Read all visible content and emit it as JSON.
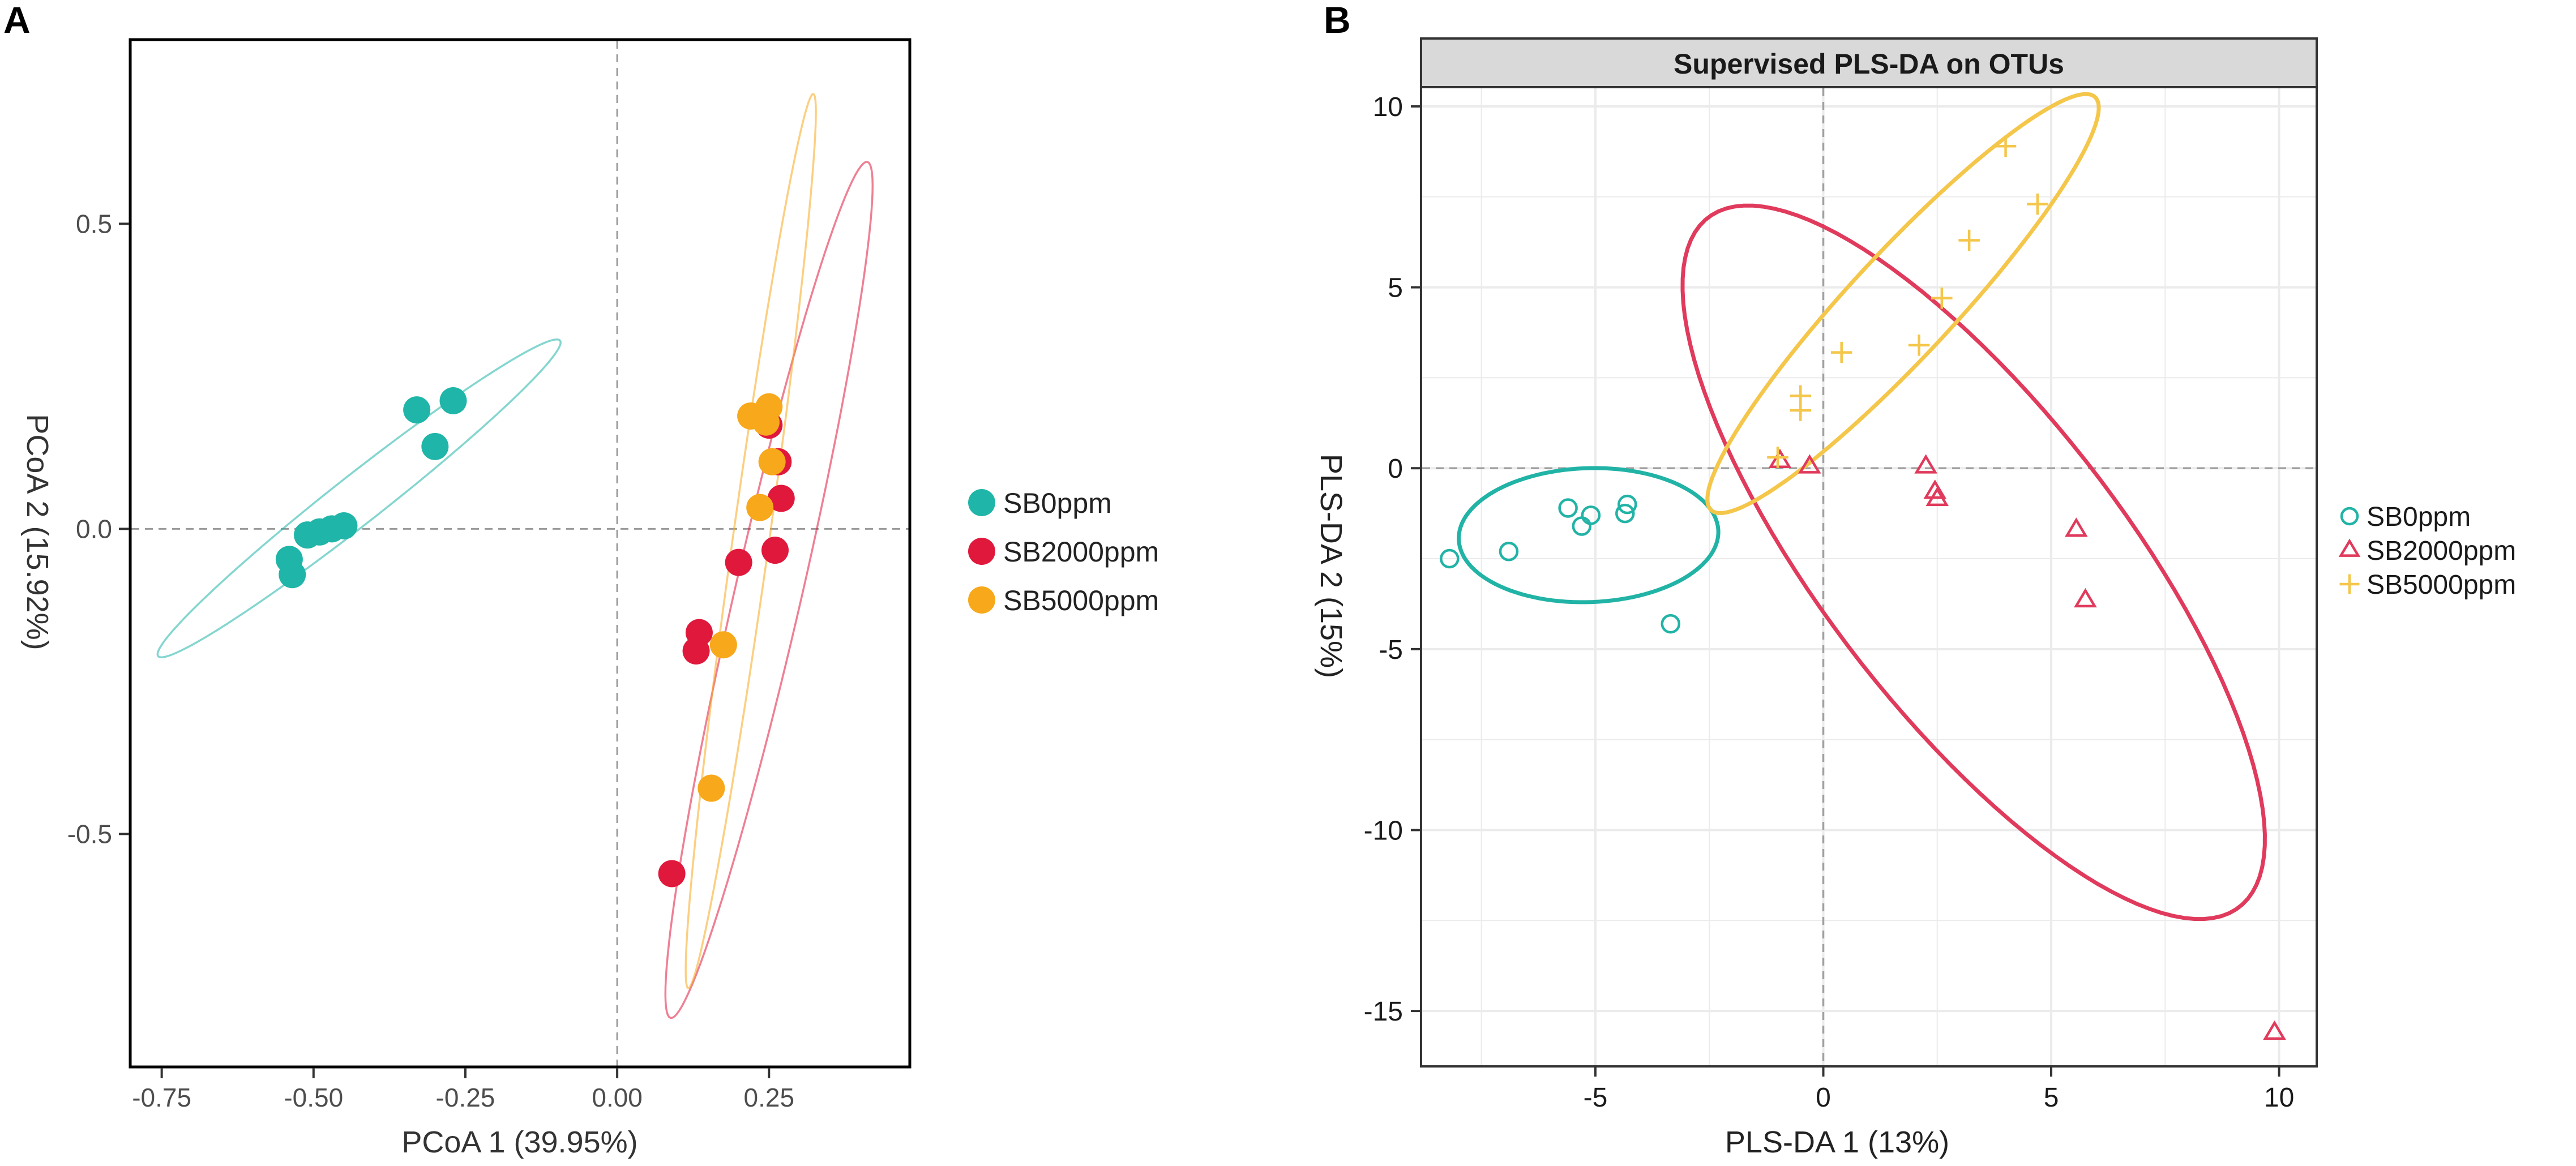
{
  "panels": {
    "a": {
      "label": "A"
    },
    "b": {
      "label": "B"
    }
  },
  "colors": {
    "SB0ppm": "#1fb5a8",
    "SB2000ppm": "#e0183c",
    "SB5000ppm": "#f7a81b",
    "b_SB0ppm": "#21b3a6",
    "b_SB2000ppm": "#e03a5c",
    "b_SB5000ppm": "#f4c64a",
    "grid": "#ebebeb",
    "strip": "#d9d9d9"
  },
  "chart_data": [
    {
      "type": "scatter",
      "panel": "A",
      "title": "",
      "xlabel": "PCoA 1 (39.95%)",
      "ylabel": "PCoA 2 (15.92%)",
      "xlim": [
        -0.8,
        0.48
      ],
      "ylim": [
        -0.88,
        0.8
      ],
      "xticks": [
        -0.75,
        -0.5,
        -0.25,
        0.0,
        0.25
      ],
      "xtick_labels": [
        "-0.75",
        "-0.50",
        "-0.25",
        "0.00",
        "0.25"
      ],
      "yticks": [
        -0.5,
        0.0,
        0.5
      ],
      "ytick_labels": [
        "-0.5",
        "0.0",
        "0.5"
      ],
      "grid": false,
      "legend_position": "right",
      "series": [
        {
          "name": "SB0ppm",
          "marker": "filled-circle",
          "points": [
            [
              -0.27,
              0.21
            ],
            [
              -0.33,
              0.195
            ],
            [
              -0.3,
              0.135
            ],
            [
              -0.45,
              0.005
            ],
            [
              -0.47,
              0.0
            ],
            [
              -0.49,
              -0.005
            ],
            [
              -0.51,
              -0.01
            ],
            [
              -0.54,
              -0.05
            ],
            [
              -0.535,
              -0.075
            ]
          ],
          "ellipse": {
            "center": [
              -0.425,
              0.05
            ],
            "semi_major": 0.42,
            "semi_minor": 0.04,
            "angle_deg": 38
          }
        },
        {
          "name": "SB2000ppm",
          "marker": "filled-circle",
          "points": [
            [
              0.25,
              0.17
            ],
            [
              0.265,
              0.11
            ],
            [
              0.27,
              0.05
            ],
            [
              0.26,
              -0.035
            ],
            [
              0.2,
              -0.055
            ],
            [
              0.135,
              -0.17
            ],
            [
              0.13,
              -0.2
            ],
            [
              0.09,
              -0.565
            ]
          ],
          "ellipse": {
            "center": [
              0.25,
              -0.1
            ],
            "semi_major": 0.72,
            "semi_minor": 0.055,
            "angle_deg": 77
          }
        },
        {
          "name": "SB5000ppm",
          "marker": "filled-circle",
          "points": [
            [
              0.22,
              0.185
            ],
            [
              0.25,
              0.2
            ],
            [
              0.245,
              0.175
            ],
            [
              0.255,
              0.11
            ],
            [
              0.235,
              0.035
            ],
            [
              0.175,
              -0.19
            ],
            [
              0.155,
              -0.425
            ]
          ],
          "ellipse": {
            "center": [
              0.22,
              -0.02
            ],
            "semi_major": 0.74,
            "semi_minor": 0.03,
            "angle_deg": 82
          }
        }
      ]
    },
    {
      "type": "scatter",
      "panel": "B",
      "title": "Supervised PLS-DA on OTUs",
      "xlabel": "PLS-DA 1 (13%)",
      "ylabel": "PLS-DA 2 (15%)",
      "xlim": [
        -8.8,
        10.8
      ],
      "ylim": [
        -16.5,
        10.5
      ],
      "xticks": [
        -5,
        0,
        5,
        10
      ],
      "xtick_labels": [
        "-5",
        "0",
        "5",
        "10"
      ],
      "yticks": [
        -15,
        -10,
        -5,
        0,
        5,
        10
      ],
      "ytick_labels": [
        "-15",
        "-10",
        "-5",
        "0",
        "5",
        "10"
      ],
      "grid": true,
      "legend_position": "right",
      "series": [
        {
          "name": "SB0ppm",
          "marker": "open-circle",
          "points": [
            [
              -8.2,
              -2.5
            ],
            [
              -6.9,
              -2.3
            ],
            [
              -5.6,
              -1.1
            ],
            [
              -5.3,
              -1.6
            ],
            [
              -5.1,
              -1.3
            ],
            [
              -4.3,
              -1.0
            ],
            [
              -4.35,
              -1.25
            ],
            [
              -3.35,
              -4.3
            ]
          ],
          "ellipse": {
            "center": [
              -5.15,
              -1.85
            ],
            "semi_major": 2.85,
            "semi_minor": 1.85,
            "angle_deg": 3
          }
        },
        {
          "name": "SB2000ppm",
          "marker": "open-triangle",
          "points": [
            [
              -0.95,
              0.2
            ],
            [
              -0.3,
              0.05
            ],
            [
              2.25,
              0.05
            ],
            [
              2.45,
              -0.65
            ],
            [
              2.5,
              -0.85
            ],
            [
              5.55,
              -1.7
            ],
            [
              5.75,
              -3.65
            ],
            [
              9.9,
              -15.6
            ]
          ],
          "ellipse": {
            "center": [
              3.3,
              -2.6
            ],
            "semi_major": 11.2,
            "semi_minor": 3.55,
            "angle_deg": -60
          }
        },
        {
          "name": "SB5000ppm",
          "marker": "plus",
          "points": [
            [
              4.0,
              8.9
            ],
            [
              4.7,
              7.3
            ],
            [
              3.2,
              6.3
            ],
            [
              2.6,
              4.7
            ],
            [
              0.4,
              3.2
            ],
            [
              2.1,
              3.4
            ],
            [
              -0.5,
              2.0
            ],
            [
              -0.5,
              1.6
            ],
            [
              -1.0,
              0.3
            ]
          ],
          "ellipse": {
            "center": [
              1.75,
              4.55
            ],
            "semi_major": 7.1,
            "semi_minor": 1.25,
            "angle_deg": 54
          }
        }
      ]
    }
  ]
}
